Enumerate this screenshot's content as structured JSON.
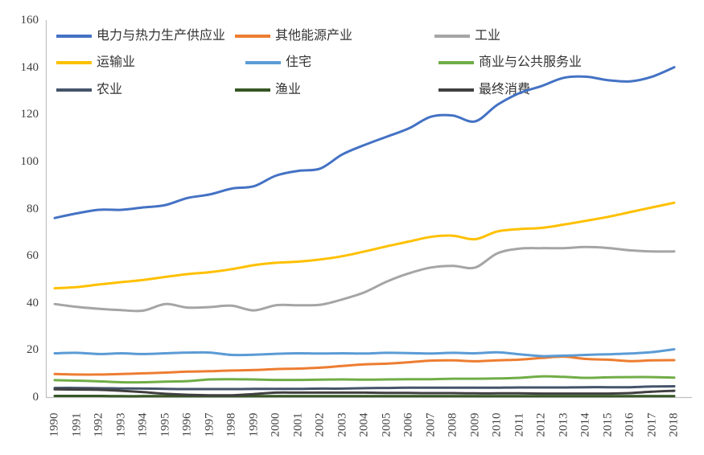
{
  "chart_data": {
    "type": "line",
    "title": "",
    "xlabel": "",
    "ylabel": "",
    "legend_position": "top",
    "grid": false,
    "smooth_lines": true,
    "axis_color": "#BFBFBF",
    "tick_label_color": "#404040",
    "ylim": [
      0,
      160
    ],
    "yticks": [
      0,
      20,
      40,
      60,
      80,
      100,
      120,
      140,
      160
    ],
    "x": [
      1990,
      1991,
      1992,
      1993,
      1994,
      1995,
      1996,
      1997,
      1998,
      1999,
      2000,
      2001,
      2002,
      2003,
      2004,
      2005,
      2006,
      2007,
      2008,
      2009,
      2010,
      2011,
      2012,
      2013,
      2014,
      2015,
      2016,
      2017,
      2018
    ],
    "series": [
      {
        "name": "电力与热力生产供应业",
        "color": "#4472C4",
        "values": [
          76,
          78,
          79.5,
          79.5,
          80.5,
          81.5,
          84.5,
          86,
          88.5,
          89.5,
          94,
          96,
          97,
          103,
          107,
          110.5,
          114,
          119,
          119.5,
          117,
          124,
          129,
          132,
          135.5,
          136,
          134.5,
          134,
          136,
          140
        ]
      },
      {
        "name": "其他能源产业",
        "color": "#ED7D31",
        "values": [
          9.8,
          9.6,
          9.6,
          9.8,
          10.1,
          10.4,
          10.8,
          11,
          11.3,
          11.5,
          11.9,
          12.1,
          12.5,
          13.2,
          13.9,
          14.2,
          14.8,
          15.5,
          15.6,
          15.2,
          15.6,
          15.9,
          16.6,
          17.2,
          16.2,
          15.9,
          15.3,
          15.6,
          15.7
        ]
      },
      {
        "name": "工业",
        "color": "#A5A5A5",
        "values": [
          39.5,
          38.3,
          37.5,
          36.9,
          36.7,
          39.5,
          38,
          38.2,
          38.8,
          36.8,
          39,
          39,
          39.2,
          41.5,
          44.5,
          49,
          52.5,
          55,
          55.7,
          55,
          61,
          63,
          63.2,
          63.2,
          63.7,
          63.3,
          62.3,
          61.8,
          61.8
        ]
      },
      {
        "name": "运输业",
        "color": "#FFC000",
        "values": [
          46.2,
          46.7,
          47.8,
          48.8,
          49.7,
          51,
          52.2,
          53,
          54.3,
          56,
          57,
          57.5,
          58.4,
          59.8,
          61.8,
          64,
          66,
          68,
          68.5,
          67,
          70.3,
          71.3,
          71.8,
          73.2,
          74.8,
          76.5,
          78.5,
          80.5,
          82.5
        ]
      },
      {
        "name": "住宅",
        "color": "#5B9BD5",
        "values": [
          18.6,
          18.8,
          18.3,
          18.6,
          18.3,
          18.6,
          18.9,
          18.9,
          17.9,
          18,
          18.4,
          18.6,
          18.5,
          18.6,
          18.5,
          18.8,
          18.7,
          18.5,
          18.8,
          18.6,
          19,
          18.2,
          17.4,
          17.6,
          17.9,
          18.2,
          18.5,
          19.1,
          20.3
        ]
      },
      {
        "name": "商业与公共服务业",
        "color": "#70AD47",
        "values": [
          7.2,
          7,
          6.7,
          6.3,
          6.3,
          6.6,
          6.8,
          7.5,
          7.6,
          7.5,
          7.3,
          7.3,
          7.4,
          7.5,
          7.4,
          7.5,
          7.6,
          7.6,
          7.8,
          7.8,
          7.9,
          8.2,
          8.8,
          8.6,
          8.2,
          8.4,
          8.5,
          8.5,
          8.3
        ]
      },
      {
        "name": "农业",
        "color": "#44546A",
        "values": [
          3.9,
          3.9,
          3.8,
          3.7,
          3.6,
          3.5,
          3.4,
          3.4,
          3.4,
          3.5,
          3.5,
          3.5,
          3.6,
          3.6,
          3.8,
          3.9,
          4,
          4,
          4,
          4,
          4,
          4.1,
          4.1,
          4.1,
          4.2,
          4.2,
          4.2,
          4.5,
          4.6
        ]
      },
      {
        "name": "渔业",
        "color": "#375623",
        "values": [
          0.5,
          0.5,
          0.5,
          0.4,
          0.4,
          0.4,
          0.4,
          0.4,
          0.4,
          0.4,
          0.4,
          0.4,
          0.4,
          0.4,
          0.4,
          0.4,
          0.4,
          0.4,
          0.4,
          0.4,
          0.4,
          0.4,
          0.4,
          0.4,
          0.4,
          0.4,
          0.4,
          0.4,
          0.4
        ]
      },
      {
        "name": "最终消费",
        "color": "#404040",
        "values": [
          3.3,
          3.2,
          3.1,
          2.7,
          2.1,
          1.4,
          1,
          0.8,
          0.8,
          1.3,
          1.9,
          1.9,
          1.9,
          1.9,
          1.9,
          1.8,
          1.8,
          1.7,
          1.7,
          1.6,
          1.6,
          1.6,
          1.5,
          1.5,
          1.5,
          1.5,
          1.7,
          2.3,
          2.7
        ]
      }
    ]
  }
}
